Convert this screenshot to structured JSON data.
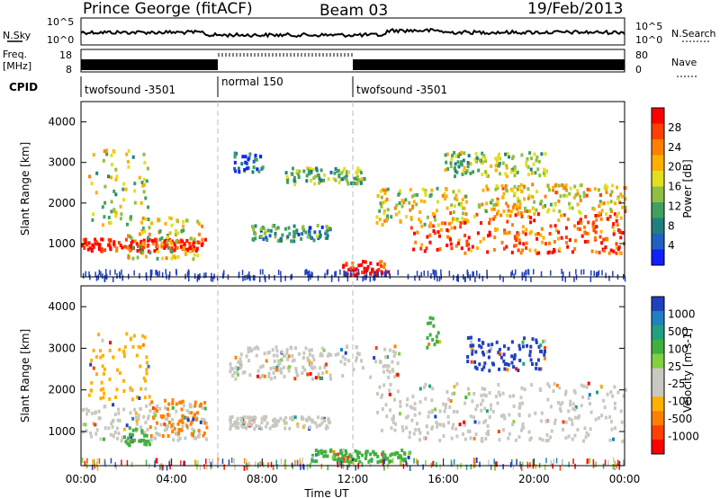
{
  "header": {
    "station": "Prince George (fitACF)",
    "beam": "Beam 03",
    "date": "19/Feb/2013"
  },
  "strip": {
    "nsky_label": "N.Sky",
    "nsky_ticks": [
      "10^5",
      "10^0"
    ],
    "nsearch_label": "N.Search",
    "nsearch_ticks": [
      "10^5",
      "10^0"
    ],
    "freq_label": "Freq.",
    "freq_unit": "[MHz]",
    "freq_ticks": [
      "18",
      "8"
    ],
    "nave_label": "Nave",
    "nave_ticks": [
      "80",
      "0"
    ],
    "cpid_label": "CPID",
    "cpid_segments": [
      {
        "label": "twofsound -3501",
        "start_h": 0,
        "end_h": 6
      },
      {
        "label": "normal 150",
        "start_h": 6,
        "end_h": 12
      },
      {
        "label": "twofsound -3501",
        "start_h": 12,
        "end_h": 24
      }
    ]
  },
  "chart_data": [
    {
      "type": "heatmap",
      "name": "power",
      "ylabel": "Slant Range [km]",
      "y_ticks": [
        1000,
        2000,
        3000,
        4000
      ],
      "ylim": [
        180,
        4500
      ],
      "colorbar_label": "Power [dB]",
      "colorbar_ticks": [
        "28",
        "24",
        "20",
        "16",
        "12",
        "8",
        "4"
      ],
      "colorbar_colors": [
        "#ff0000",
        "#ff4000",
        "#ff8000",
        "#ffb000",
        "#e0e020",
        "#90c040",
        "#40a060",
        "#208080",
        "#2060c0",
        "#1020ff"
      ],
      "regions": [
        {
          "x0": 0.0,
          "x1": 5.5,
          "y0": 850,
          "y1": 1150,
          "level": 0.95
        },
        {
          "x0": 2.0,
          "x1": 5.3,
          "y0": 650,
          "y1": 1700,
          "level": 0.55
        },
        {
          "x0": 0.3,
          "x1": 3.0,
          "y0": 1500,
          "y1": 3400,
          "level": 0.5
        },
        {
          "x0": 6.7,
          "x1": 8.0,
          "y0": 2800,
          "y1": 3300,
          "level": 0.2
        },
        {
          "x0": 9.0,
          "x1": 12.5,
          "y0": 2500,
          "y1": 2900,
          "level": 0.4
        },
        {
          "x0": 7.5,
          "x1": 11.0,
          "y0": 1100,
          "y1": 1500,
          "level": 0.3
        },
        {
          "x0": 11.5,
          "x1": 13.5,
          "y0": 250,
          "y1": 600,
          "level": 0.98
        },
        {
          "x0": 13.0,
          "x1": 17.0,
          "y0": 1500,
          "y1": 2400,
          "level": 0.55
        },
        {
          "x0": 14.5,
          "x1": 24.0,
          "y0": 800,
          "y1": 1800,
          "level": 0.8
        },
        {
          "x0": 17.5,
          "x1": 24.0,
          "y0": 1800,
          "y1": 2500,
          "level": 0.6
        },
        {
          "x0": 16.0,
          "x1": 20.5,
          "y0": 2700,
          "y1": 3300,
          "level": 0.45
        }
      ]
    },
    {
      "type": "heatmap",
      "name": "velocity",
      "ylabel": "Slant Range [km]",
      "xlabel": "Time UT",
      "y_ticks": [
        1000,
        2000,
        3000,
        4000
      ],
      "ylim": [
        180,
        4500
      ],
      "x_ticks": [
        "00:00",
        "04:00",
        "08:00",
        "12:00",
        "16:00",
        "20:00",
        "00:00"
      ],
      "xlim": [
        0,
        24
      ],
      "colorbar_label": "Velocity [m s-1]",
      "colorbar_ticks": [
        "1000",
        "500",
        "100",
        "25",
        "-25",
        "-100",
        "-500",
        "-1000"
      ],
      "colorbar_colors": [
        "#2040c0",
        "#2080c0",
        "#20a080",
        "#40b040",
        "#80d040",
        "#c8c8c0",
        "#c8c8c0",
        "#ffb000",
        "#ff8000",
        "#ff4000",
        "#ff0000"
      ],
      "regions": [
        {
          "x0": 0.0,
          "x1": 5.5,
          "y0": 800,
          "y1": 1700,
          "color": "#c8c8c0"
        },
        {
          "x0": 3.0,
          "x1": 5.5,
          "y0": 900,
          "y1": 1800,
          "color": "#ff8000"
        },
        {
          "x0": 1.8,
          "x1": 3.0,
          "y0": 700,
          "y1": 1100,
          "color": "#40b040"
        },
        {
          "x0": 0.3,
          "x1": 3.0,
          "y0": 1800,
          "y1": 3400,
          "color": "#ffb000"
        },
        {
          "x0": 6.5,
          "x1": 14.0,
          "y0": 2300,
          "y1": 3100,
          "color": "#c8c8c0"
        },
        {
          "x0": 6.5,
          "x1": 11.0,
          "y0": 1100,
          "y1": 1400,
          "color": "#c8c8c0"
        },
        {
          "x0": 10.0,
          "x1": 14.5,
          "y0": 300,
          "y1": 600,
          "color": "#40b040"
        },
        {
          "x0": 13.0,
          "x1": 24.0,
          "y0": 800,
          "y1": 2200,
          "color": "#c8c8c0"
        },
        {
          "x0": 15.2,
          "x1": 15.8,
          "y0": 3000,
          "y1": 3800,
          "color": "#40b040"
        },
        {
          "x0": 17.0,
          "x1": 20.5,
          "y0": 2500,
          "y1": 3300,
          "color": "#2040c0"
        }
      ]
    }
  ]
}
